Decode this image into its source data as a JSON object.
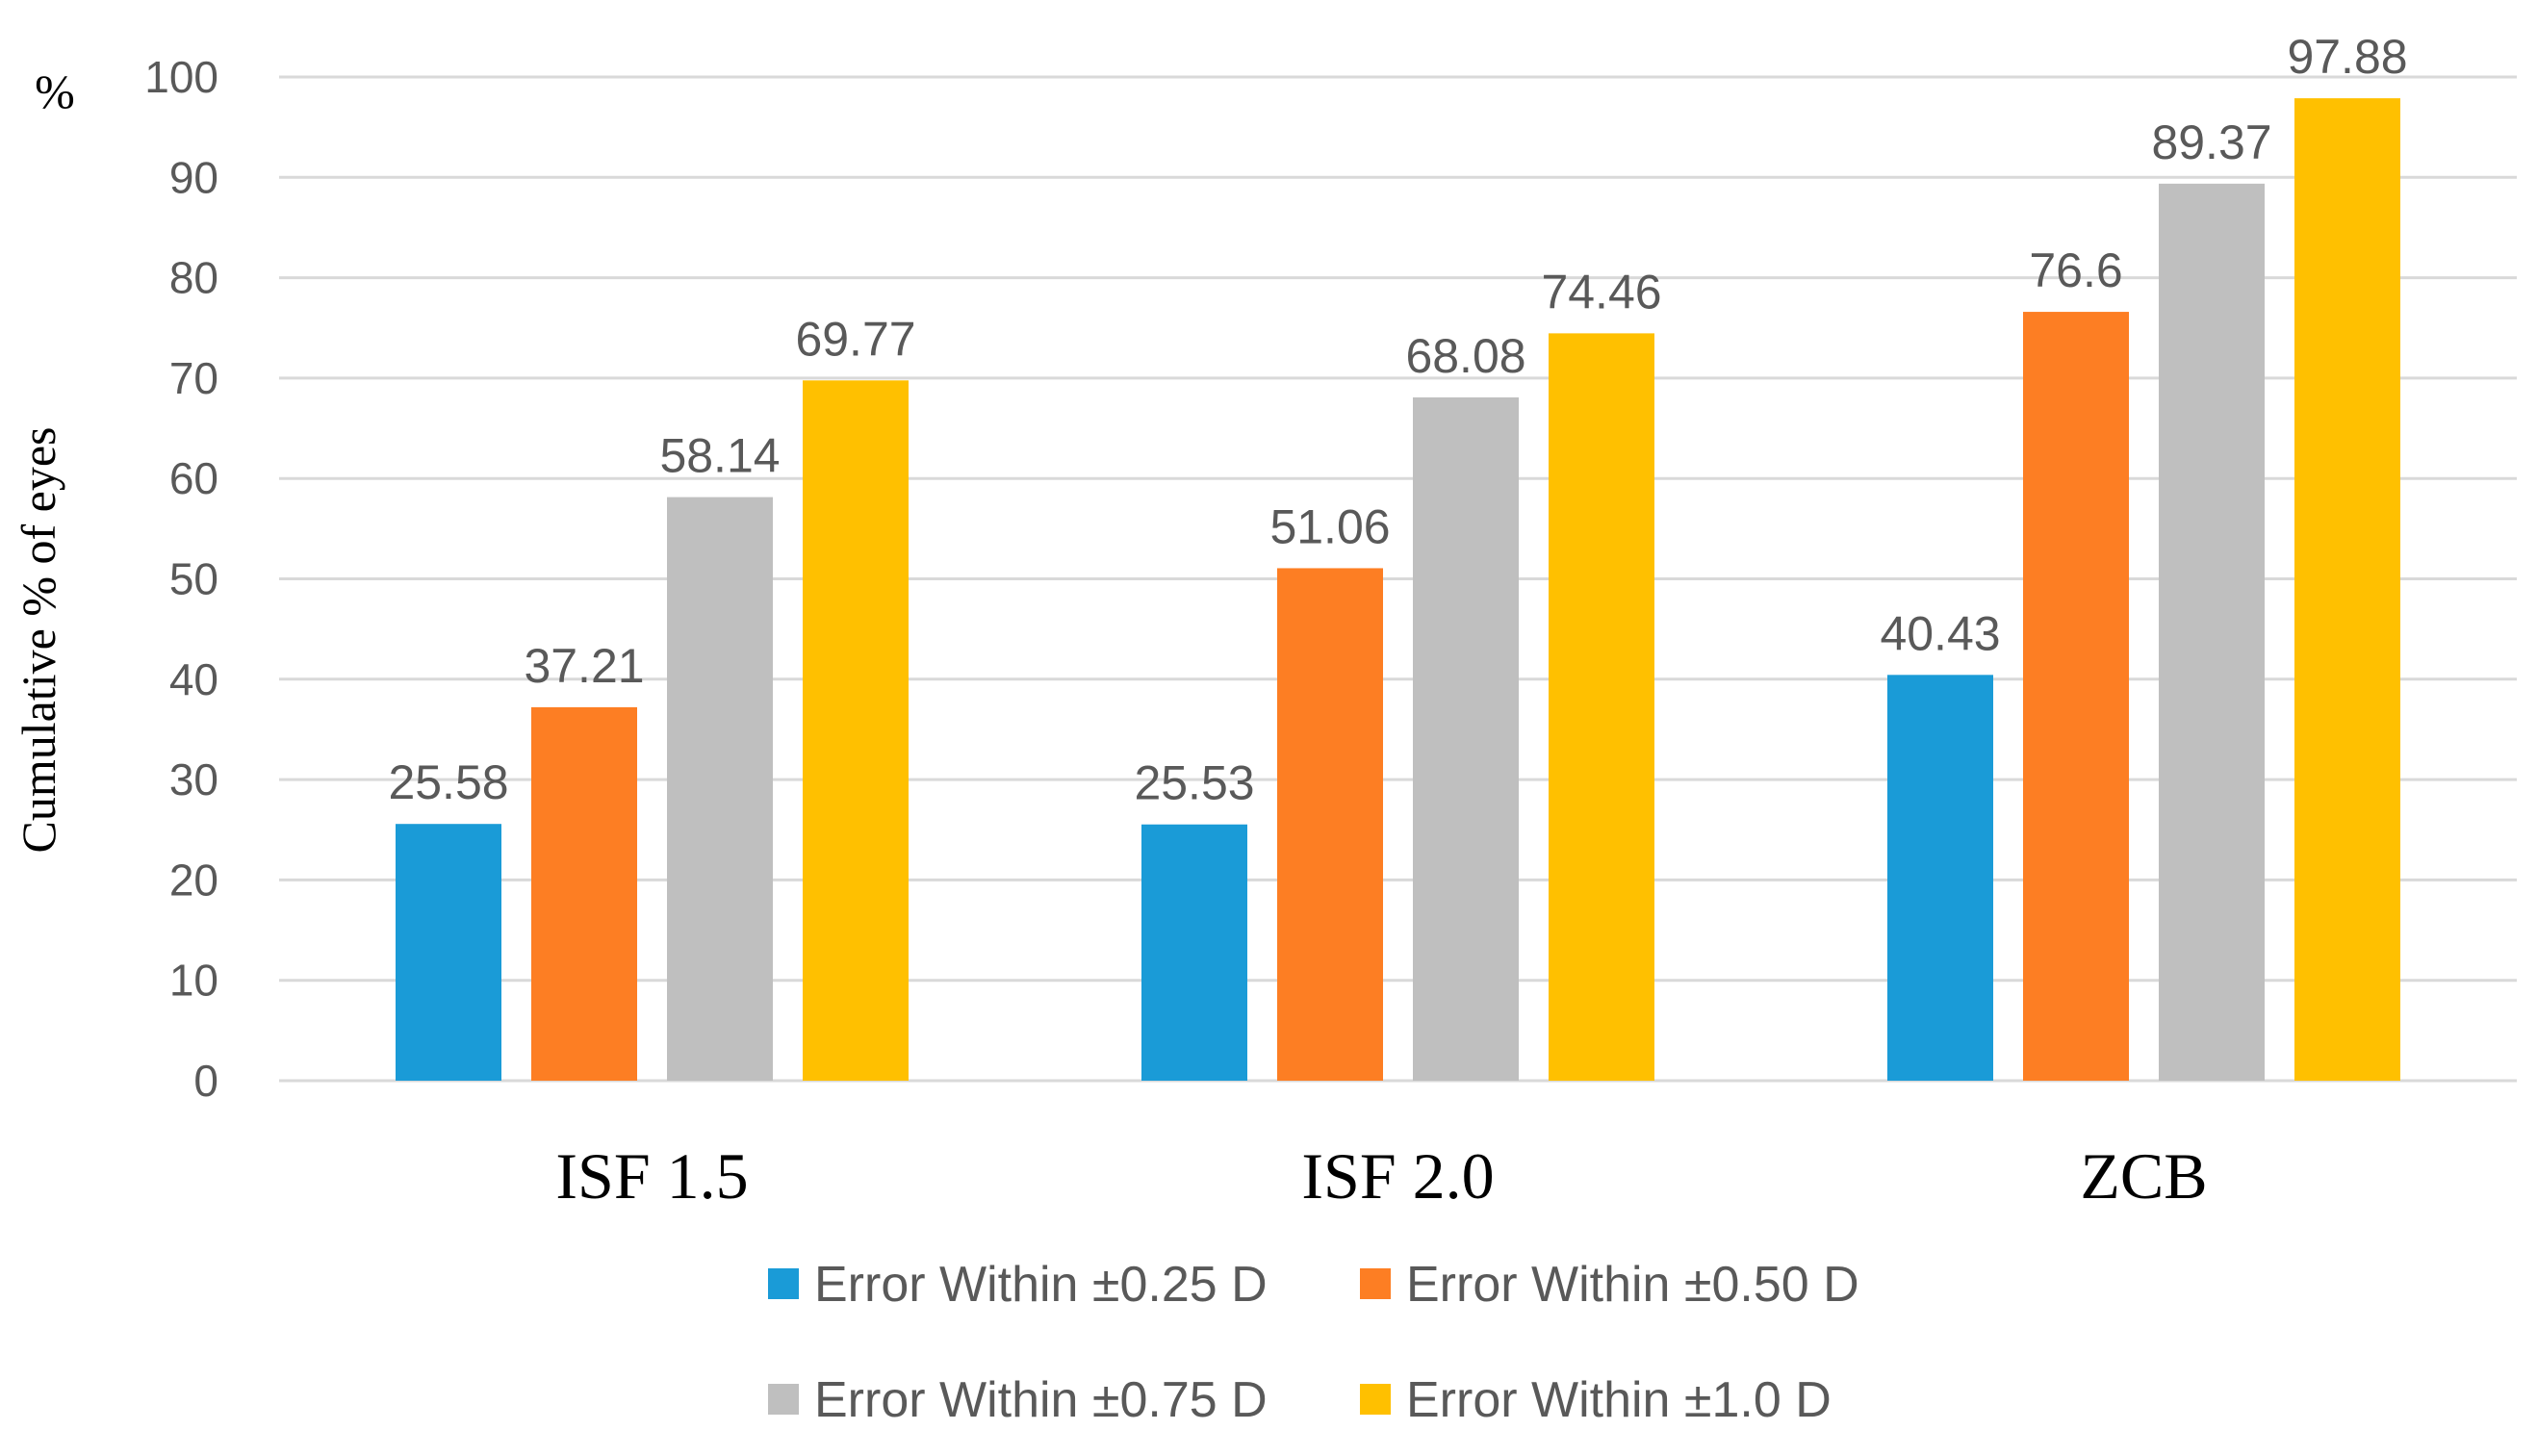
{
  "chart_data": {
    "type": "bar",
    "title": "",
    "unit_label": "%",
    "ylabel": "Cumulative % of eyes",
    "xlabel": "",
    "ylim": [
      0,
      100
    ],
    "y_ticks": [
      0,
      10,
      20,
      30,
      40,
      50,
      60,
      70,
      80,
      90,
      100
    ],
    "grid": true,
    "legend_position": "bottom",
    "categories": [
      "ISF 1.5",
      "ISF 2.0",
      "ZCB"
    ],
    "series": [
      {
        "name": "Error Within ±0.25 D",
        "color": "#1a9bd7",
        "values": [
          25.58,
          25.53,
          40.43
        ],
        "labels": [
          "25.58",
          "25.53",
          "40.43"
        ]
      },
      {
        "name": "Error Within ±0.50 D",
        "color": "#fd7e23",
        "values": [
          37.21,
          51.06,
          76.6
        ],
        "labels": [
          "37.21",
          "51.06",
          "76.6"
        ]
      },
      {
        "name": "Error Within ±0.75 D",
        "color": "#bfbfbf",
        "values": [
          58.14,
          68.08,
          89.37
        ],
        "labels": [
          "58.14",
          "68.08",
          "89.37"
        ]
      },
      {
        "name": "Error Within ±1.0 D",
        "color": "#ffc000",
        "values": [
          69.77,
          74.46,
          97.88
        ],
        "labels": [
          "69.77",
          "74.46",
          "97.88"
        ]
      }
    ]
  }
}
